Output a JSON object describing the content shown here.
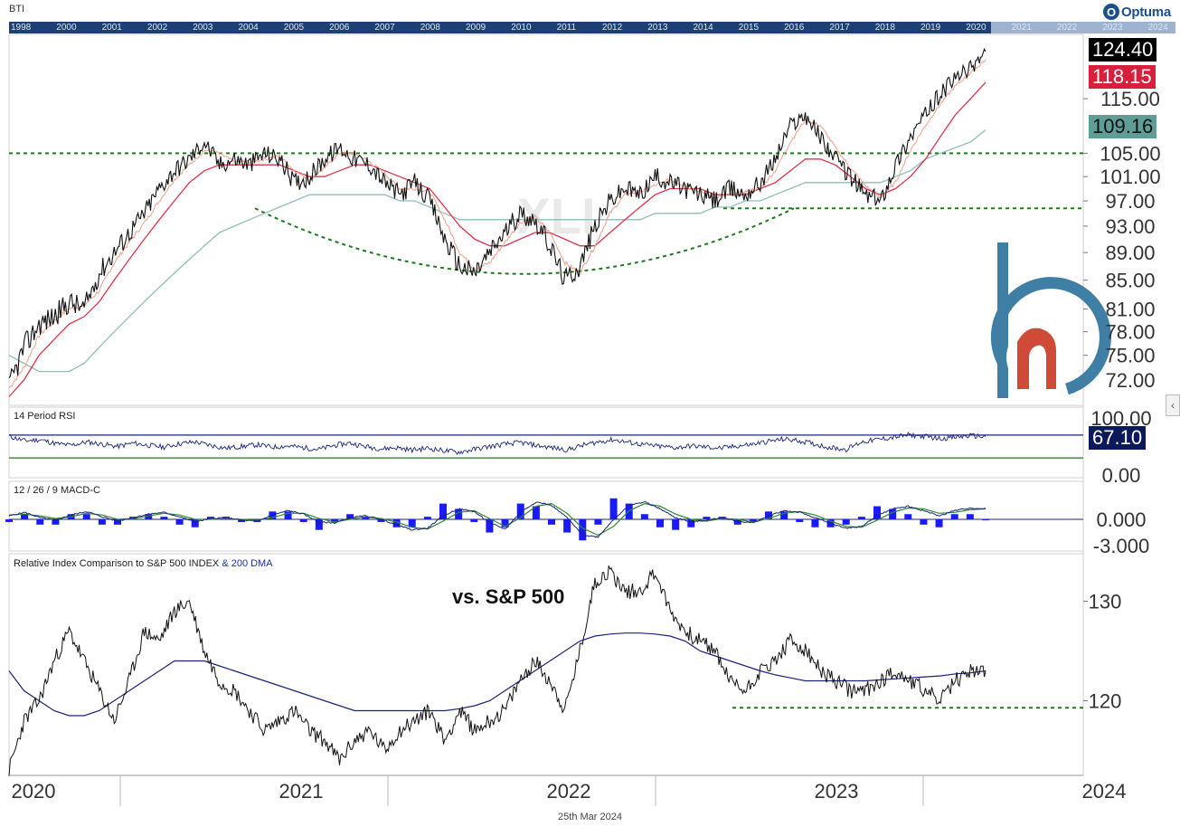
{
  "header": {
    "ticker": "BTI",
    "brand": "Optuma",
    "brand_mark": "O",
    "overview_years": [
      "1998",
      "2000",
      "2001",
      "2002",
      "2003",
      "2004",
      "2005",
      "2006",
      "2007",
      "2008",
      "2009",
      "2010",
      "2011",
      "2012",
      "2013",
      "2014",
      "2015",
      "2016",
      "2017",
      "2018",
      "2019",
      "2020",
      "2021",
      "2022",
      "2023",
      "2024"
    ]
  },
  "badges": {
    "last_price": "124.40",
    "ma_short": "118.15",
    "ma_long": "109.16",
    "rsi_value": "67.10"
  },
  "panels": {
    "rsi_label": "14 Period RSI",
    "macd_label": "12 / 26 / 9 MACD-C",
    "relative_label_main": "Relative Index Comparison to S&P 500 INDEX",
    "relative_label_dma": "& 200 DMA",
    "relative_annotation": "vs. S&P 500"
  },
  "footer": {
    "date": "25th Mar 2024"
  },
  "colors": {
    "price": "#111111",
    "ma_fast": "#f0a08a",
    "ma_mid": "#e0334a",
    "ma_slow": "#8fbfba",
    "guide": "#1e7a1e",
    "rsi_line": "#1a237e",
    "macd_signal": "#2e8b2e",
    "macd_hist": "#1a1aff",
    "overview": "#1e3f73",
    "badge_last": "#000000",
    "badge_mid": "#d81f3c",
    "badge_slow": "#5f9e96",
    "badge_rsi": "#0c1a5c"
  },
  "chart_data": [
    {
      "type": "line",
      "title": "BTI",
      "x_labels": [
        "2020",
        "2021",
        "2022",
        "2023",
        "2024"
      ],
      "y_ticks": [
        72,
        75,
        78,
        81,
        85,
        89,
        93,
        97,
        101,
        105,
        115
      ],
      "y_tick_labels": [
        "72.00",
        "75.00",
        "78.00",
        "81.00",
        "85.00",
        "89.00",
        "93.00",
        "97.00",
        "101.00",
        "105.00",
        "115.00"
      ],
      "ylim": [
        69,
        128
      ],
      "log_scale": true,
      "series": [
        {
          "values": [
            71,
            76,
            79,
            80,
            82,
            81,
            86,
            89,
            92,
            95,
            99,
            102,
            104,
            107,
            103,
            104,
            103,
            105,
            104,
            100,
            101,
            104,
            106,
            104,
            103,
            100,
            98,
            100,
            97,
            91,
            87,
            86,
            89,
            92,
            95,
            94,
            90,
            85,
            87,
            93,
            97,
            99,
            98,
            101,
            100,
            99,
            98,
            97,
            99,
            98,
            100,
            104,
            110,
            112,
            108,
            104,
            101,
            98,
            97,
            103,
            108,
            112,
            116,
            119,
            121,
            124.4
          ]
        },
        {
          "name": "118.15",
          "values": [
            70,
            72,
            75,
            77,
            79,
            80,
            82,
            85,
            88,
            91,
            94,
            97,
            100,
            102,
            103,
            103,
            103,
            103,
            103,
            102,
            101,
            101,
            102,
            103,
            103,
            102,
            101,
            100,
            99,
            96,
            93,
            91,
            90,
            90,
            91,
            92,
            92,
            91,
            90,
            90,
            92,
            94,
            96,
            98,
            99,
            99,
            99,
            98,
            98,
            98,
            99,
            100,
            102,
            104,
            104,
            103,
            101,
            99,
            98,
            99,
            101,
            104,
            108,
            112,
            115,
            118.15
          ]
        },
        {
          "name": "109.16",
          "values": [
            75,
            74,
            73,
            73,
            73,
            74,
            76,
            78,
            80,
            82,
            84,
            86,
            88,
            90,
            92,
            93,
            94,
            95,
            96,
            97,
            98,
            98,
            98,
            98,
            98,
            98,
            97,
            97,
            96,
            95,
            94,
            94,
            94,
            94,
            94,
            94,
            94,
            94,
            94,
            94,
            94,
            94,
            94,
            95,
            95,
            95,
            95,
            96,
            96,
            97,
            97,
            98,
            99,
            100,
            100,
            100,
            100,
            100,
            100,
            101,
            102,
            104,
            105,
            106,
            107,
            109.16
          ]
        }
      ],
      "annotations": [
        "horizontal guide at 105.00",
        "horizontal guide at 95.80",
        "rounded base curve 2021–2023"
      ]
    },
    {
      "type": "line",
      "title": "14 Period RSI",
      "y_ticks": [
        100,
        0
      ],
      "y_tick_labels": [
        "100.00",
        "0.00"
      ],
      "ylim": [
        0,
        100
      ],
      "reference_lines": [
        70,
        30
      ],
      "series": [
        {
          "name": "RSI",
          "values": [
            68,
            60,
            62,
            55,
            52,
            58,
            54,
            50,
            56,
            52,
            49,
            55,
            58,
            52,
            47,
            50,
            53,
            49,
            51,
            48,
            45,
            52,
            56,
            50,
            46,
            48,
            44,
            47,
            43,
            40,
            45,
            50,
            54,
            57,
            52,
            48,
            44,
            52,
            58,
            62,
            57,
            53,
            50,
            48,
            51,
            49,
            47,
            51,
            54,
            59,
            63,
            60,
            54,
            48,
            45,
            58,
            62,
            66,
            70,
            68,
            64,
            66,
            69,
            67.1
          ]
        }
      ]
    },
    {
      "type": "bar",
      "title": "12 / 26 / 9 MACD-C",
      "y_ticks": [
        0,
        -3
      ],
      "y_tick_labels": [
        "0.000",
        "-3.000"
      ],
      "ylim": [
        -3.3,
        3.0
      ],
      "series": [
        {
          "name": "MACD",
          "values": [
            0.4,
            0.8,
            0.2,
            -0.1,
            0.5,
            0.9,
            0.3,
            -0.2,
            0.2,
            0.6,
            0.8,
            0.3,
            -0.3,
            0.1,
            0.2,
            -0.1,
            -0.2,
            0.5,
            1.0,
            0.6,
            -0.3,
            -0.4,
            0.2,
            0.4,
            0.0,
            -0.6,
            -1.2,
            -1.0,
            0.4,
            1.2,
            0.9,
            -0.4,
            -1.1,
            0.8,
            2.0,
            1.6,
            0.2,
            -1.8,
            -2.0,
            0.0,
            1.6,
            2.0,
            1.2,
            0.2,
            -0.3,
            -0.1,
            0.2,
            -0.2,
            -0.4,
            0.4,
            1.0,
            0.8,
            0.2,
            -0.5,
            -1.0,
            -0.8,
            0.4,
            1.2,
            1.5,
            1.0,
            0.4,
            1.0,
            1.3,
            1.2
          ]
        },
        {
          "name": "Signal",
          "values": [
            0.5,
            0.6,
            0.4,
            0.1,
            0.3,
            0.7,
            0.5,
            0.0,
            0.1,
            0.4,
            0.7,
            0.5,
            0.0,
            0.0,
            0.1,
            0.0,
            -0.1,
            0.2,
            0.7,
            0.7,
            0.1,
            -0.3,
            0.0,
            0.3,
            0.1,
            -0.3,
            -0.9,
            -1.1,
            -0.2,
            0.8,
            1.0,
            0.1,
            -0.8,
            0.2,
            1.5,
            1.8,
            0.7,
            -1.0,
            -1.8,
            -0.8,
            1.0,
            1.8,
            1.5,
            0.6,
            0.0,
            -0.2,
            0.1,
            0.0,
            -0.3,
            0.1,
            0.7,
            0.9,
            0.5,
            -0.2,
            -0.8,
            -0.9,
            -0.1,
            0.8,
            1.3,
            1.2,
            0.7,
            0.8,
            1.1,
            1.2
          ]
        }
      ]
    },
    {
      "type": "line",
      "title": "Relative Index Comparison to S&P 500 INDEX & 200 DMA",
      "y_ticks": [
        120,
        130
      ],
      "y_tick_labels": [
        "120",
        "130"
      ],
      "ylim": [
        112.5,
        134.5
      ],
      "series": [
        {
          "name": "Relative",
          "values": [
            113,
            118,
            120,
            124,
            127,
            124,
            121,
            118,
            122,
            127,
            126,
            129,
            130,
            125,
            122,
            121,
            119,
            117,
            118,
            119,
            117,
            116,
            114,
            116,
            117,
            115,
            117,
            118,
            119,
            116,
            119,
            117,
            118,
            119,
            122,
            124,
            122,
            119,
            125,
            132,
            133,
            131,
            131,
            133,
            129,
            127,
            126,
            125,
            122,
            121,
            123,
            124,
            126,
            125,
            123,
            122,
            121,
            121,
            122,
            123,
            122,
            121,
            120,
            122,
            123,
            123
          ]
        },
        {
          "name": "200 DMA",
          "values": [
            123,
            121,
            120,
            119,
            118.5,
            118.5,
            119,
            120,
            121,
            122,
            123,
            124,
            124,
            124,
            123.5,
            123,
            122.5,
            122,
            121.5,
            121,
            120.5,
            120,
            119.5,
            119,
            119,
            119,
            119,
            119,
            119,
            119,
            119.2,
            119.5,
            120,
            121,
            122,
            123,
            124,
            125,
            126,
            126.5,
            126.7,
            126.8,
            126.8,
            126.7,
            126.5,
            126,
            125,
            124.5,
            124,
            123.5,
            123,
            122.6,
            122.3,
            122,
            122,
            122,
            122,
            122,
            122.1,
            122.2,
            122.3,
            122.4,
            122.5,
            122.7,
            122.8,
            123
          ]
        }
      ],
      "annotations": [
        "vs. S&P 500",
        "horizontal guide near 119.3"
      ]
    }
  ]
}
